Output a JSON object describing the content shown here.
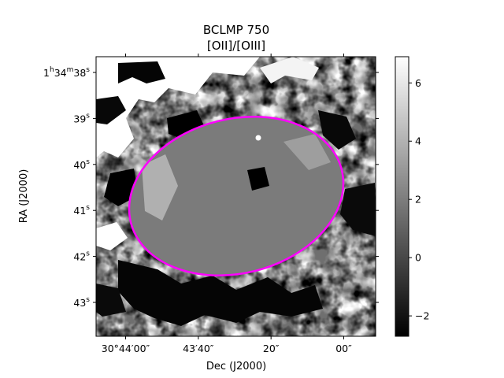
{
  "chart_data": {
    "type": "heatmap",
    "title": "BCLMP 750",
    "subtitle": "[OII]/[OIII]",
    "xlabel": "Dec (J2000)",
    "ylabel": "RA (J2000)",
    "x_ticks": [
      {
        "label": "30°44′00″",
        "value_arcsec": 0
      },
      {
        "label": "43′40″",
        "value_arcsec": -20
      },
      {
        "label": "20″",
        "value_arcsec": -40
      },
      {
        "label": "00″",
        "value_arcsec": -60
      }
    ],
    "y_ticks": [
      {
        "label": "1h34m38s",
        "value_s": 38
      },
      {
        "label": "39s",
        "value_s": 39
      },
      {
        "label": "40s",
        "value_s": 40
      },
      {
        "label": "41s",
        "value_s": 41
      },
      {
        "label": "42s",
        "value_s": 42
      },
      {
        "label": "43s",
        "value_s": 43
      }
    ],
    "colorbar": {
      "cmap": "gray",
      "vmin": -2.7,
      "vmax": 6.9,
      "ticks": [
        -2,
        0,
        2,
        4,
        6
      ]
    },
    "overlay": {
      "shape": "ellipse",
      "color": "#ff00ff"
    }
  }
}
